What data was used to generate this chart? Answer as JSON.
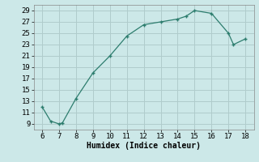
{
  "x": [
    6,
    6.5,
    7,
    7.2,
    8,
    9,
    10,
    11,
    12,
    13,
    14,
    14.5,
    15,
    16,
    17,
    17.3,
    18
  ],
  "y": [
    12,
    9.5,
    9,
    9.2,
    13.5,
    18,
    21,
    24.5,
    26.5,
    27,
    27.5,
    28,
    29,
    28.5,
    25,
    23,
    24
  ],
  "line_color": "#2d7d6e",
  "marker": "+",
  "bg_color": "#cce8e8",
  "grid_color": "#b0cccc",
  "xlabel": "Humidex (Indice chaleur)",
  "xlim": [
    5.5,
    18.5
  ],
  "ylim": [
    8,
    30
  ],
  "xticks": [
    6,
    7,
    8,
    9,
    10,
    11,
    12,
    13,
    14,
    15,
    16,
    17,
    18
  ],
  "yticks": [
    9,
    11,
    13,
    15,
    17,
    19,
    21,
    23,
    25,
    27,
    29
  ],
  "label_fontsize": 7,
  "tick_fontsize": 6.5
}
